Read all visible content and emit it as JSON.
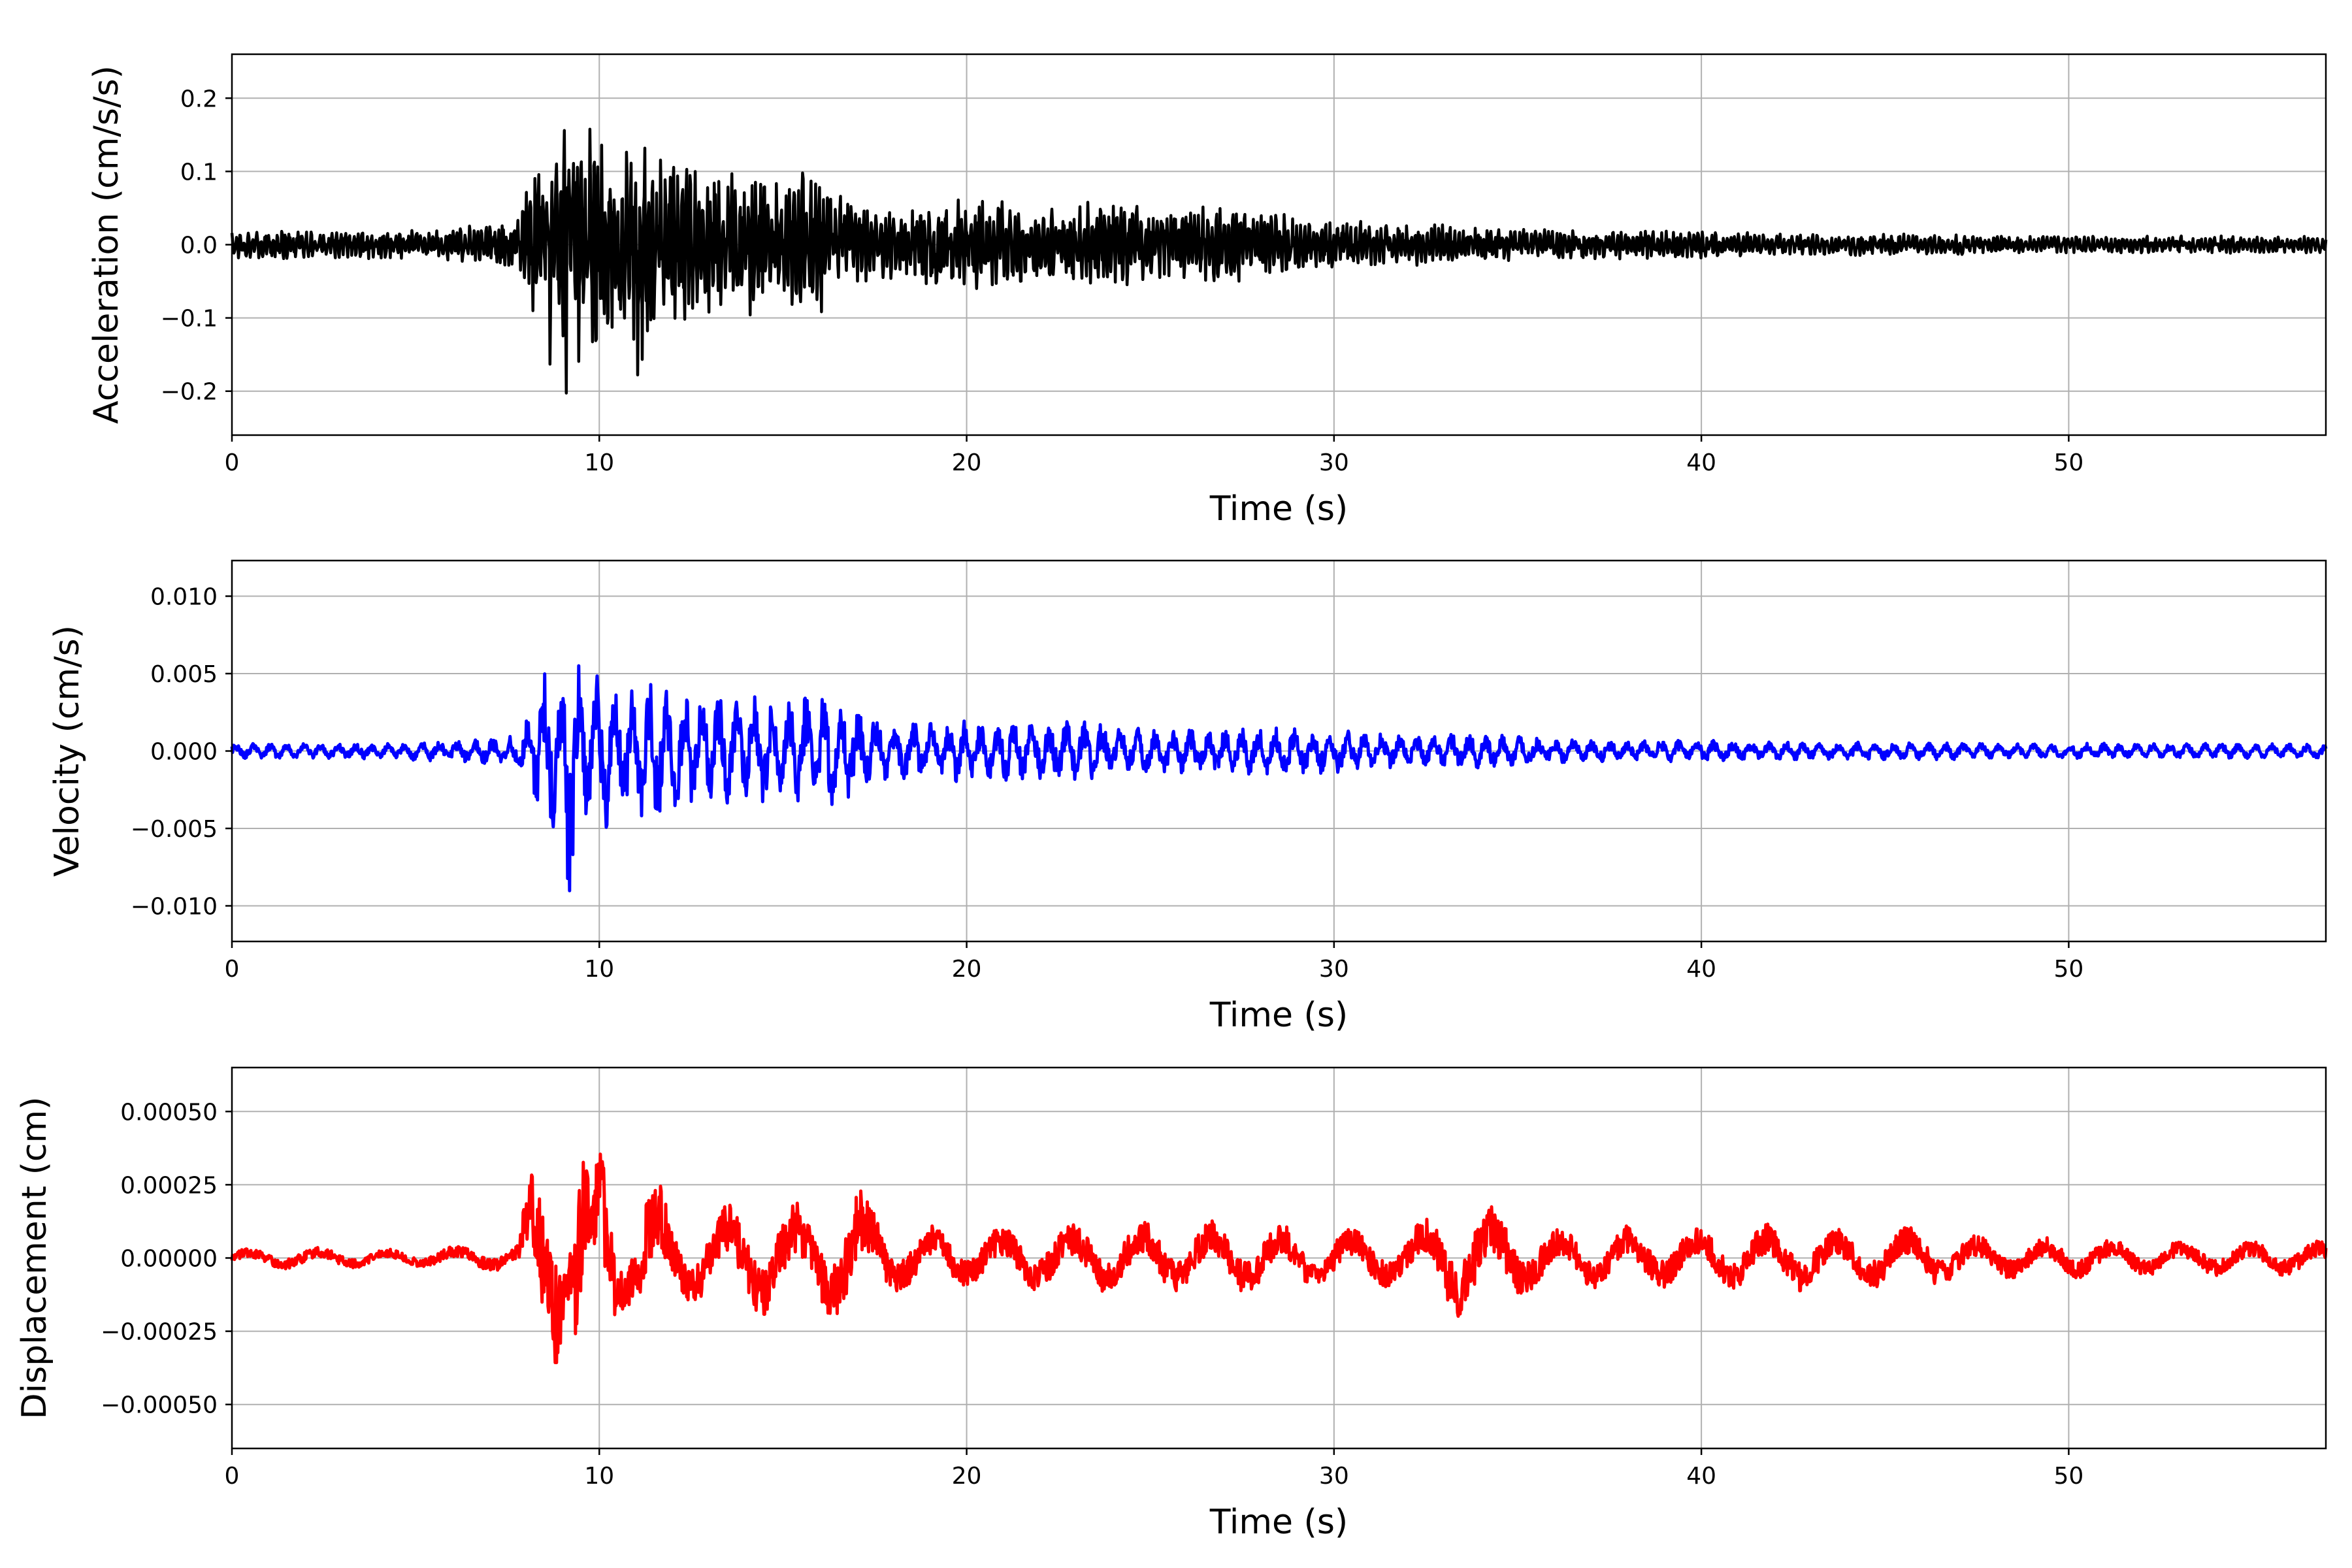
{
  "chart_data": [
    {
      "type": "line",
      "title": "",
      "xlabel": "Time (s)",
      "ylabel": "Acceleration (cm/s/s)",
      "xlim": [
        0,
        57
      ],
      "ylim": [
        -0.26,
        0.26
      ],
      "xticks": [
        0,
        10,
        20,
        30,
        40,
        50
      ],
      "xtick_labels": [
        "0",
        "10",
        "20",
        "30",
        "40",
        "50"
      ],
      "yticks": [
        -0.2,
        -0.1,
        0.0,
        0.1,
        0.2
      ],
      "ytick_labels": [
        "−0.2",
        "−0.1",
        "0.0",
        "0.1",
        "0.2"
      ],
      "grid": true,
      "color": "#000000",
      "series": [
        {
          "x": [
            0,
            1,
            2,
            3,
            4,
            5,
            6,
            7,
            7.8,
            8.2,
            8.5,
            8.8,
            9.0,
            9.2,
            9.4,
            9.6,
            9.8,
            10.0,
            10.2,
            10.4,
            10.6,
            10.8,
            11.0,
            11.2,
            11.4,
            11.8,
            12.2,
            12.6,
            13.0,
            13.5,
            14.0,
            14.5,
            15.0,
            15.5,
            16.0,
            17.0,
            18.0,
            19.0,
            20.0,
            21.0,
            22.0,
            23.0,
            24.0,
            25.0,
            26.0,
            27.0,
            28.0,
            29.0,
            30.0,
            32.0,
            34.0,
            36.0,
            38.0,
            40.0,
            42.0,
            44.0,
            46.0,
            48.0,
            50.0,
            52.0,
            54.0,
            57.0
          ],
          "y_envelope": [
            0.02,
            0.02,
            0.02,
            0.02,
            0.02,
            0.02,
            0.025,
            0.03,
            0.04,
            0.12,
            0.14,
            0.2,
            0.22,
            0.23,
            0.2,
            0.18,
            0.17,
            0.16,
            0.15,
            0.14,
            0.13,
            0.13,
            0.19,
            0.16,
            0.14,
            0.13,
            0.12,
            0.13,
            0.12,
            0.11,
            0.1,
            0.11,
            0.09,
            0.1,
            0.1,
            0.06,
            0.05,
            0.06,
            0.07,
            0.06,
            0.05,
            0.06,
            0.06,
            0.05,
            0.05,
            0.06,
            0.05,
            0.04,
            0.035,
            0.03,
            0.025,
            0.02,
            0.02,
            0.02,
            0.015,
            0.015,
            0.015,
            0.012,
            0.012,
            0.012,
            0.012,
            0.012
          ]
        }
      ]
    },
    {
      "type": "line",
      "title": "",
      "xlabel": "Time (s)",
      "ylabel": "Velocity (cm/s)",
      "xlim": [
        0,
        57
      ],
      "ylim": [
        -0.0123,
        0.0123
      ],
      "xticks": [
        0,
        10,
        20,
        30,
        40,
        50
      ],
      "xtick_labels": [
        "0",
        "10",
        "20",
        "30",
        "40",
        "50"
      ],
      "yticks": [
        -0.01,
        -0.005,
        0.0,
        0.005,
        0.01
      ],
      "ytick_labels": [
        "−0.010",
        "−0.005",
        "0.000",
        "0.005",
        "0.010"
      ],
      "grid": true,
      "color": "#0000ff",
      "series": [
        {
          "x": [
            0,
            2,
            4,
            6,
            7.8,
            8.2,
            8.5,
            8.8,
            9.0,
            9.1,
            9.2,
            9.4,
            9.6,
            9.8,
            10.0,
            10.2,
            10.5,
            11.0,
            11.4,
            12.0,
            12.6,
            13.0,
            13.5,
            14.0,
            14.5,
            15.0,
            15.8,
            16.5,
            17.0,
            18.0,
            19.0,
            20.0,
            22.0,
            23.0,
            25.0,
            27.0,
            29.0,
            30.0,
            32.0,
            34.0,
            36.0,
            38.0,
            40.0,
            42.0,
            44.0,
            46.0,
            48.0,
            50.0,
            52.0,
            54.0,
            57.0
          ],
          "y_envelope": [
            0.0005,
            0.0005,
            0.0005,
            0.0007,
            0.001,
            0.0035,
            0.006,
            0.005,
            0.0065,
            0.009,
            0.011,
            0.006,
            0.005,
            0.005,
            0.007,
            0.005,
            0.004,
            0.004,
            0.005,
            0.004,
            0.004,
            0.004,
            0.0035,
            0.0035,
            0.0035,
            0.003,
            0.004,
            0.0035,
            0.003,
            0.002,
            0.002,
            0.002,
            0.002,
            0.002,
            0.0015,
            0.0015,
            0.0015,
            0.0015,
            0.001,
            0.0012,
            0.0008,
            0.0007,
            0.0007,
            0.0006,
            0.0006,
            0.0006,
            0.0005,
            0.0005,
            0.0005,
            0.0005,
            0.0005
          ]
        }
      ]
    },
    {
      "type": "line",
      "title": "",
      "xlabel": "Time (s)",
      "ylabel": "Displacement (cm)",
      "xlim": [
        0,
        57
      ],
      "ylim": [
        -0.00065,
        0.00065
      ],
      "xticks": [
        0,
        10,
        20,
        30,
        40,
        50
      ],
      "xtick_labels": [
        "0",
        "10",
        "20",
        "30",
        "40",
        "50"
      ],
      "yticks": [
        -0.0005,
        -0.00025,
        0.0,
        0.00025,
        0.0005
      ],
      "ytick_labels": [
        "−0.00050",
        "−0.00025",
        "0.00000",
        "0.00025",
        "0.00050"
      ],
      "grid": true,
      "color": "#ff0000",
      "series": [
        {
          "x": [
            0,
            2,
            4,
            6,
            7.8,
            8.2,
            8.5,
            8.8,
            9.0,
            9.2,
            9.4,
            9.6,
            9.8,
            10.0,
            10.2,
            10.5,
            11.0,
            11.4,
            12.0,
            13.0,
            14.0,
            15.0,
            16.0,
            17.0,
            18.0,
            20.0,
            22.0,
            24.0,
            26.0,
            28.0,
            30.0,
            32.0,
            33.5,
            34.5,
            36.0,
            38.0,
            40.0,
            42.0,
            44.0,
            46.0,
            48.0,
            50.0,
            52.0,
            54.0,
            57.0
          ],
          "y_envelope": [
            3e-05,
            4e-05,
            3e-05,
            4e-05,
            5e-05,
            0.0004,
            0.00042,
            0.0004,
            0.00025,
            0.00015,
            0.00058,
            0.0004,
            0.0002,
            0.0004,
            0.00045,
            0.0002,
            0.00015,
            0.00035,
            0.00015,
            0.00017,
            0.0002,
            0.0002,
            0.00018,
            0.00025,
            0.00012,
            0.0001,
            0.00012,
            0.00012,
            0.00013,
            0.00012,
            0.0001,
            0.0001,
            0.00021,
            0.00018,
            0.0001,
            0.00011,
            0.0001,
            0.00012,
            0.0001,
            0.00011,
            7e-05,
            7e-05,
            6e-05,
            6e-05,
            6e-05
          ]
        }
      ]
    }
  ]
}
